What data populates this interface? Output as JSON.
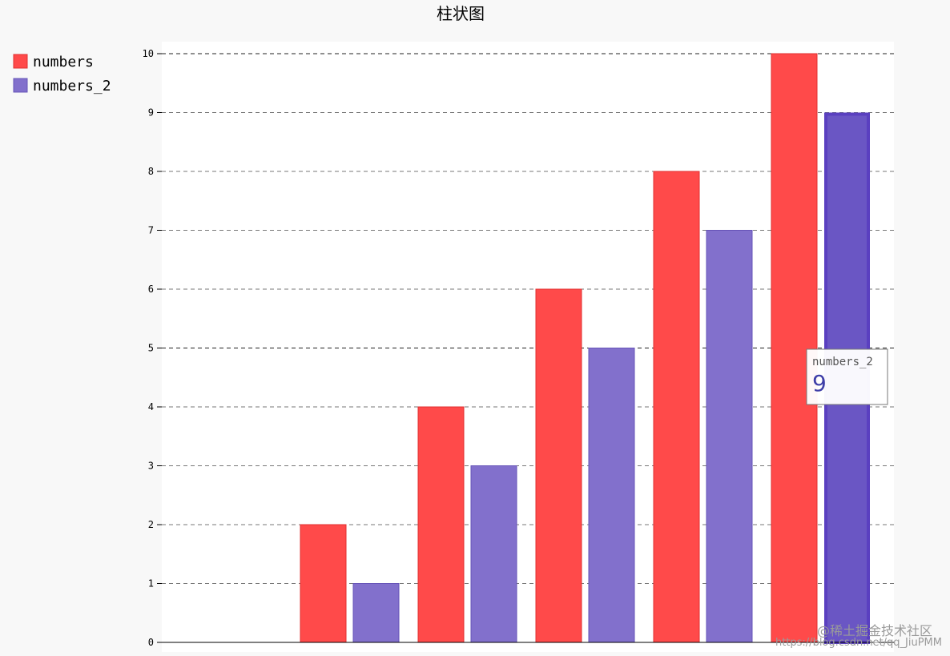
{
  "chart_data": {
    "type": "bar",
    "title": "柱状图",
    "categories": [
      "",
      "",
      "",
      "",
      "",
      ""
    ],
    "series": [
      {
        "name": "numbers",
        "values": [
          0,
          2,
          4,
          6,
          8,
          10
        ],
        "color": "#ff4a4a",
        "stroke": "#e03030"
      },
      {
        "name": "numbers_2",
        "values": [
          0,
          1,
          3,
          5,
          7,
          9
        ],
        "color": "#8270cc",
        "stroke": "#6653b8"
      }
    ],
    "ylim": [
      0,
      10
    ],
    "yticks": [
      0,
      1,
      2,
      3,
      4,
      5,
      6,
      7,
      8,
      9,
      10
    ],
    "major_yticks": [
      0,
      5,
      10
    ],
    "xlabel": "",
    "ylabel": "",
    "grid": true,
    "legend_position": "top-left",
    "highlight": {
      "series": 1,
      "index": 5,
      "color": "#6a56c4",
      "stroke": "#5a40c0"
    },
    "tooltip": {
      "series_name": "numbers_2",
      "value": "9"
    }
  },
  "watermark": "@稀土掘金技术社区",
  "watermark_2": "https://blog.csdn.net/qq_JiuPMM"
}
